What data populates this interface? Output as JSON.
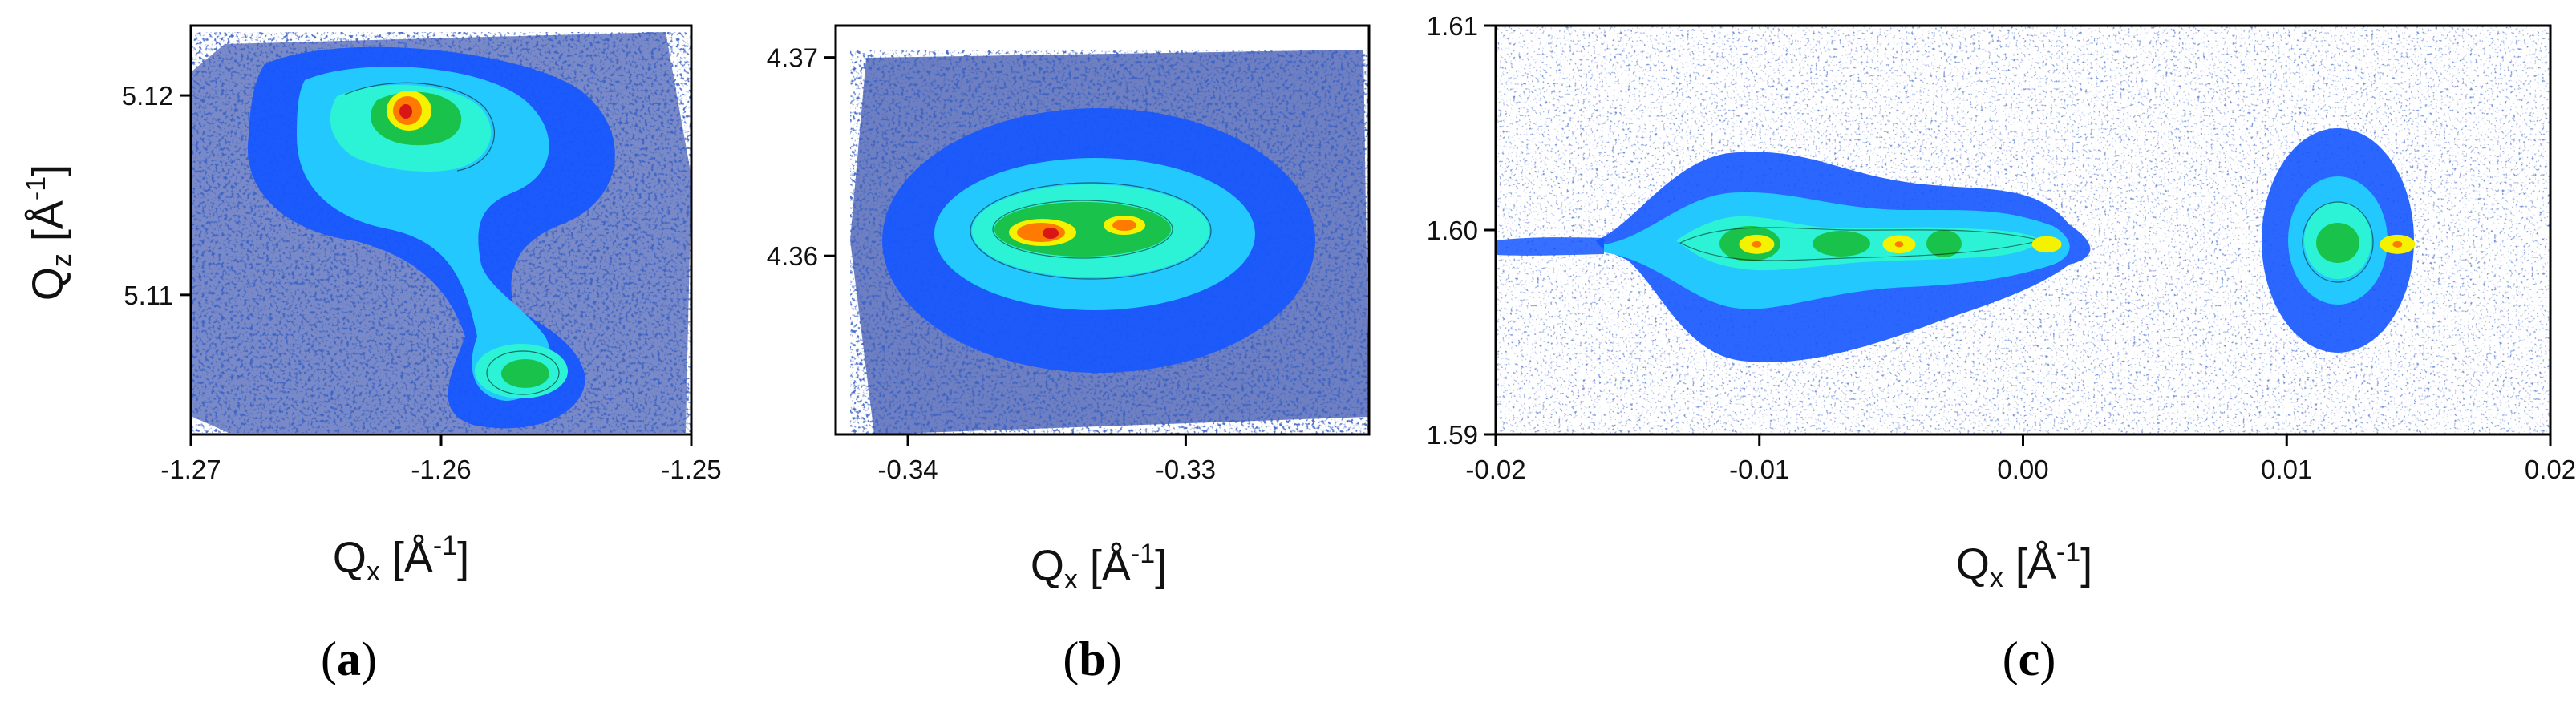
{
  "colors": {
    "background": "#ffffff",
    "axis": "#000000",
    "scale": [
      "#ffffff",
      "#0a1f8f",
      "#1456ff",
      "#23c8ff",
      "#2cf3d6",
      "#19c24a",
      "#f5f200",
      "#ff7a00",
      "#d81616"
    ]
  },
  "chart_data": [
    {
      "type": "heatmap",
      "panel_label": "a",
      "xlabel": {
        "main": "Q",
        "sub": "x",
        "unit_open": " [Å",
        "sup": "-1",
        "unit_close": "]"
      },
      "ylabel": {
        "main": "Q",
        "sub": "z",
        "unit_open": " [Å",
        "sup": "-1",
        "unit_close": "]"
      },
      "xlim": [
        -1.27,
        -1.25
      ],
      "ylim": [
        5.103,
        5.1235
      ],
      "xticks": [
        -1.27,
        -1.26,
        -1.25
      ],
      "xtick_labels": [
        "-1.27",
        "-1.26",
        "-1.25"
      ],
      "yticks": [
        5.11,
        5.12
      ],
      "ytick_labels": [
        "5.11",
        "5.12"
      ],
      "peaks": [
        {
          "x": -1.2607,
          "y": 5.1181,
          "intensity": 1.0
        },
        {
          "x": -1.2555,
          "y": 5.1057,
          "intensity": 0.85
        }
      ]
    },
    {
      "type": "heatmap",
      "panel_label": "b",
      "xlabel": {
        "main": "Q",
        "sub": "x",
        "unit_open": " [Å",
        "sup": "-1",
        "unit_close": "]"
      },
      "ylabel": null,
      "xlim": [
        -0.3426,
        -0.3234
      ],
      "ylim": [
        4.351,
        4.3716
      ],
      "xticks": [
        -0.34,
        -0.33
      ],
      "xtick_labels": [
        "-0.34",
        "-0.33"
      ],
      "yticks": [
        4.36,
        4.37
      ],
      "ytick_labels": [
        "4.36",
        "4.37"
      ],
      "peaks": [
        {
          "x": -0.3346,
          "y": 4.3608,
          "intensity": 1.0
        },
        {
          "x": -0.3311,
          "y": 4.3612,
          "intensity": 0.92
        }
      ]
    },
    {
      "type": "heatmap",
      "panel_label": "c",
      "xlabel": {
        "main": "Q",
        "sub": "x",
        "unit_open": " [Å",
        "sup": "-1",
        "unit_close": "]"
      },
      "ylabel": null,
      "xlim": [
        -0.02,
        0.02
      ],
      "ylim": [
        1.59,
        1.61
      ],
      "xticks": [
        -0.02,
        -0.01,
        0.0,
        0.01,
        0.02
      ],
      "xtick_labels": [
        "-0.02",
        "-0.01",
        "0.00",
        "0.01",
        "0.02"
      ],
      "yticks": [
        1.59,
        1.6,
        1.61
      ],
      "ytick_labels": [
        "1.59",
        "1.60",
        "1.61"
      ],
      "peaks": [
        {
          "x": -0.0101,
          "y": 1.5993,
          "intensity": 1.0
        },
        {
          "x": -0.0047,
          "y": 1.5993,
          "intensity": 0.9
        },
        {
          "x": 0.0009,
          "y": 1.5993,
          "intensity": 0.75
        },
        {
          "x": 0.0142,
          "y": 1.5993,
          "intensity": 1.0
        }
      ]
    }
  ]
}
